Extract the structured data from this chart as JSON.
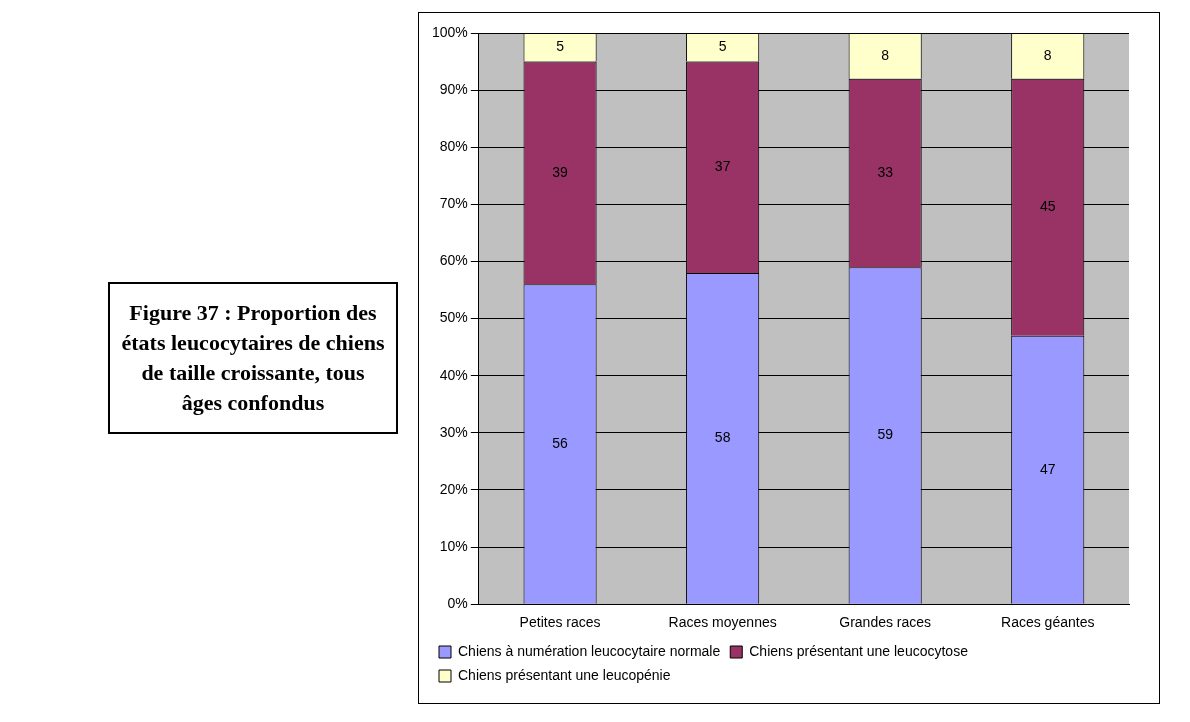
{
  "chart_data": {
    "type": "bar",
    "title": "Figure 37 : Proportion des états leucocytaires de chiens de taille croissante, tous âges confondus",
    "categories": [
      "Petites races",
      "Races moyennes",
      "Grandes races",
      "Races géantes"
    ],
    "stacked": true,
    "series": [
      {
        "name": "Chiens à numération leucocytaire normale",
        "color": "#9999ff",
        "values": [
          56,
          58,
          59,
          47
        ]
      },
      {
        "name": "Chiens présentant une leucocytose",
        "color": "#993366",
        "values": [
          39,
          37,
          33,
          45
        ]
      },
      {
        "name": "Chiens présentant une leucopénie",
        "color": "#ffffcc",
        "values": [
          5,
          5,
          8,
          8
        ]
      }
    ],
    "ylim": [
      0,
      100
    ],
    "yticks": [
      {
        "value": 0,
        "label": "0%"
      },
      {
        "value": 10,
        "label": "10%"
      },
      {
        "value": 20,
        "label": "20%"
      },
      {
        "value": 30,
        "label": "30%"
      },
      {
        "value": 40,
        "label": "40%"
      },
      {
        "value": 50,
        "label": "50%"
      },
      {
        "value": 60,
        "label": "60%"
      },
      {
        "value": 70,
        "label": "70%"
      },
      {
        "value": 80,
        "label": "80%"
      },
      {
        "value": 90,
        "label": "90%"
      },
      {
        "value": 100,
        "label": "100%"
      }
    ],
    "grid": "y",
    "data_labels": true,
    "legend": "bottom"
  }
}
